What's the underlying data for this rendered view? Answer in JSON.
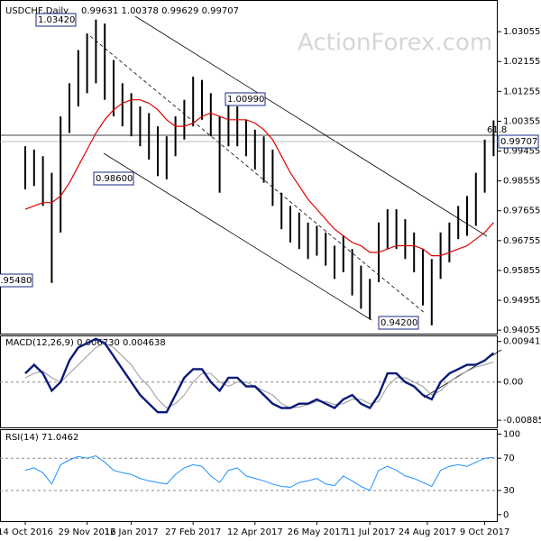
{
  "chart_data": [
    {
      "type": "range",
      "title": "USDCHF,Daily",
      "subtitle": "0.99631 1.00378 0.99629 0.99707",
      "watermark": "ActionForex.com",
      "color": "#000000",
      "highs": [
        0.996,
        0.995,
        0.993,
        0.988,
        1.005,
        1.015,
        1.025,
        1.03,
        1.0342,
        1.033,
        1.022,
        1.015,
        1.012,
        1.008,
        1.006,
        1.002,
        0.999,
        1.005,
        1.01,
        1.017,
        1.016,
        1.012,
        1.005,
        1.0099,
        1.008,
        1.004,
        1.001,
        0.999,
        0.995,
        0.982,
        0.978,
        0.976,
        0.973,
        0.972,
        0.97,
        0.966,
        0.969,
        0.965,
        0.96,
        0.956,
        0.973,
        0.977,
        0.977,
        0.974,
        0.97,
        0.965,
        0.962,
        0.97,
        0.973,
        0.978,
        0.981,
        0.988,
        0.998,
        1.0038
      ],
      "lows": [
        0.983,
        0.984,
        0.978,
        0.9548,
        0.97,
        1.0,
        1.008,
        1.012,
        1.015,
        1.01,
        1.005,
        1.002,
        0.999,
        0.996,
        0.992,
        0.987,
        0.986,
        0.993,
        0.998,
        1.002,
        1.004,
        0.999,
        0.982,
        0.996,
        0.996,
        0.993,
        0.989,
        0.985,
        0.978,
        0.971,
        0.967,
        0.965,
        0.962,
        0.963,
        0.96,
        0.956,
        0.958,
        0.951,
        0.947,
        0.9438,
        0.955,
        0.965,
        0.965,
        0.962,
        0.958,
        0.948,
        0.942,
        0.956,
        0.961,
        0.968,
        0.969,
        0.972,
        0.982,
        0.993
      ],
      "ma": {
        "color": "#e00000",
        "values": [
          0.977,
          0.978,
          0.979,
          0.979,
          0.981,
          0.985,
          0.99,
          0.995,
          1.0,
          1.004,
          1.007,
          1.009,
          1.01,
          1.01,
          1.009,
          1.007,
          1.004,
          1.002,
          1.002,
          1.003,
          1.005,
          1.006,
          1.005,
          1.004,
          1.004,
          1.004,
          1.003,
          1.001,
          0.998,
          0.993,
          0.988,
          0.984,
          0.98,
          0.977,
          0.974,
          0.971,
          0.969,
          0.967,
          0.966,
          0.964,
          0.964,
          0.965,
          0.966,
          0.966,
          0.966,
          0.965,
          0.963,
          0.963,
          0.964,
          0.965,
          0.966,
          0.968,
          0.97,
          0.973
        ]
      },
      "ylim": [
        0.9395,
        1.0401
      ],
      "yticks": [
        1.03055,
        1.02155,
        1.01255,
        1.00355,
        0.99455,
        0.98555,
        0.97655,
        0.96755,
        0.95855,
        0.94955,
        0.94055
      ],
      "annotations": [
        "1.03420",
        "1.00990",
        "0.98600",
        "0.95480",
        "0.94200",
        "61.8",
        "0.99707"
      ]
    },
    {
      "type": "macd",
      "title": "MACD(12,26,9) 0.006730 0.004638",
      "color": "#0a1a7a",
      "signal_color": "#999999",
      "values": [
        0.002,
        0.004,
        0.002,
        -0.002,
        0,
        0.005,
        0.008,
        0.009,
        0.01,
        0.009,
        0.006,
        0.003,
        0,
        -0.003,
        -0.005,
        -0.007,
        -0.007,
        -0.003,
        0.001,
        0.003,
        0.003,
        0,
        -0.002,
        0.001,
        0.001,
        -0.001,
        -0.001,
        -0.003,
        -0.005,
        -0.006,
        -0.006,
        -0.005,
        -0.005,
        -0.004,
        -0.005,
        -0.006,
        -0.004,
        -0.003,
        -0.005,
        -0.006,
        -0.003,
        0.002,
        0.002,
        0,
        -0.001,
        -0.003,
        -0.004,
        0,
        0.002,
        0.003,
        0.004,
        0.004,
        0.005,
        0.00673
      ],
      "signal": [
        0.001,
        0.002,
        0.0025,
        0.001,
        0,
        0.002,
        0.004,
        0.006,
        0.008,
        0.009,
        0.008,
        0.006,
        0.004,
        0.001,
        -0.001,
        -0.004,
        -0.006,
        -0.005,
        -0.003,
        0,
        0.002,
        0.002,
        0,
        -0.001,
        0,
        0,
        -0.001,
        -0.002,
        -0.003,
        -0.005,
        -0.006,
        -0.0058,
        -0.0052,
        -0.0045,
        -0.0045,
        -0.0052,
        -0.005,
        -0.004,
        -0.004,
        -0.005,
        -0.0045,
        -0.001,
        0.001,
        0.001,
        0,
        -0.001,
        -0.003,
        -0.002,
        0,
        0.0015,
        0.0025,
        0.0035,
        0.004,
        0.004638
      ],
      "ylim": [
        -0.0105,
        0.0108
      ],
      "yticks": [
        0.009411,
        {
          "value": 0,
          "label": "0.00"
        },
        -0.008852
      ]
    },
    {
      "type": "rsi",
      "title": "RSI(14) 71.0462",
      "color": "#1e90ff",
      "values": [
        55,
        58,
        52,
        38,
        62,
        68,
        72,
        70,
        73,
        65,
        55,
        52,
        50,
        45,
        42,
        40,
        38,
        50,
        58,
        62,
        60,
        48,
        40,
        55,
        58,
        48,
        45,
        42,
        38,
        35,
        34,
        40,
        42,
        45,
        38,
        36,
        48,
        42,
        35,
        30,
        55,
        60,
        55,
        48,
        45,
        40,
        35,
        55,
        60,
        62,
        60,
        65,
        70,
        71.0462
      ],
      "ylim": [
        -8,
        106
      ],
      "yticks": [
        100,
        70,
        30,
        0
      ],
      "levels": [
        70,
        30
      ],
      "xticks": [
        {
          "value": 0,
          "label": "14 Oct 2016"
        },
        {
          "value": 7,
          "label": "29 Nov 2016"
        },
        {
          "value": 12,
          "label": "12 Jan 2017"
        },
        {
          "value": 19,
          "label": "27 Feb 2017"
        },
        {
          "value": 26,
          "label": "12 Apr 2017"
        },
        {
          "value": 33,
          "label": "26 May 2017"
        },
        {
          "value": 39,
          "label": "11 Jul 2017"
        },
        {
          "value": 45.5,
          "label": "24 Aug 2017"
        },
        {
          "value": 52,
          "label": "9 Oct 2017"
        }
      ]
    }
  ]
}
